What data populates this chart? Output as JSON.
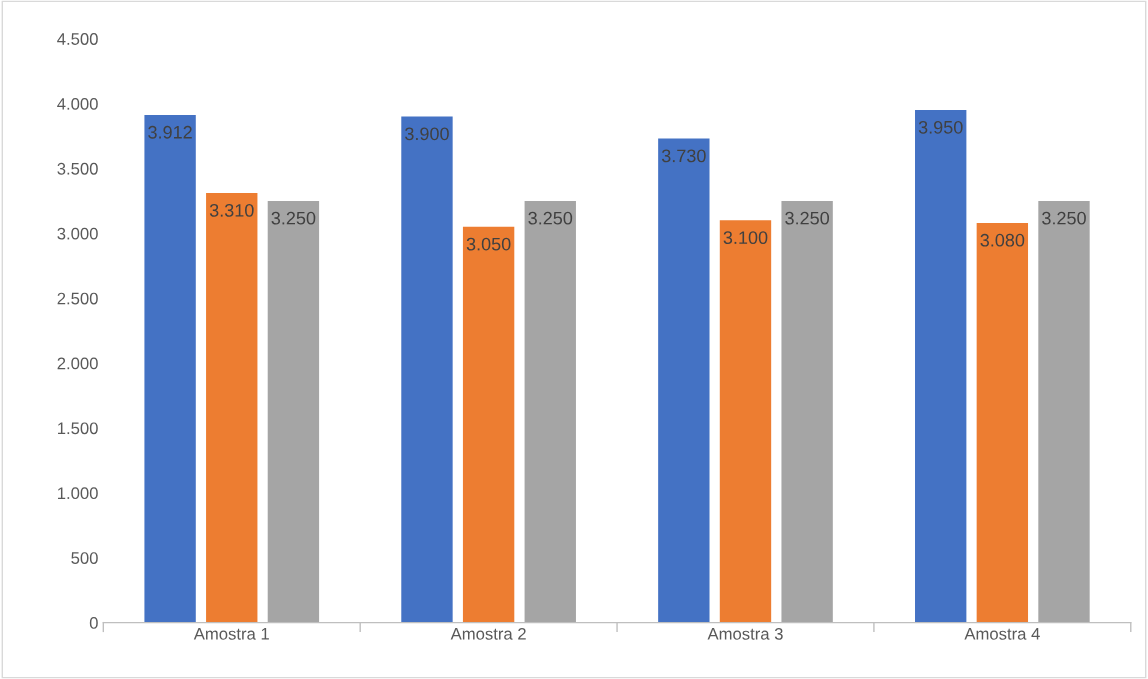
{
  "chart_data": {
    "type": "bar",
    "categories": [
      "Amostra 1",
      "Amostra 2",
      "Amostra 3",
      "Amostra 4"
    ],
    "series": [
      {
        "color": "#4472c4",
        "values": [
          3912,
          3900,
          3730,
          3950
        ],
        "value_labels": [
          "3.912",
          "3.900",
          "3.730",
          "3.950"
        ]
      },
      {
        "color": "#ed7d31",
        "values": [
          3310,
          3050,
          3100,
          3080
        ],
        "value_labels": [
          "3.310",
          "3.050",
          "3.100",
          "3.080"
        ]
      },
      {
        "color": "#a5a5a5",
        "values": [
          3250,
          3250,
          3250,
          3250
        ],
        "value_labels": [
          "3.250",
          "3.250",
          "3.250",
          "3.250"
        ]
      }
    ],
    "ylim": [
      0,
      4500
    ],
    "yticks": [
      {
        "value": 0,
        "label": "0"
      },
      {
        "value": 500,
        "label": "500"
      },
      {
        "value": 1000,
        "label": "1.000"
      },
      {
        "value": 1500,
        "label": "1.500"
      },
      {
        "value": 2000,
        "label": "2.000"
      },
      {
        "value": 2500,
        "label": "2.500"
      },
      {
        "value": 3000,
        "label": "3.000"
      },
      {
        "value": 3500,
        "label": "3.500"
      },
      {
        "value": 4000,
        "label": "4.000"
      },
      {
        "value": 4500,
        "label": "4.500"
      }
    ],
    "grid": false,
    "legend": false
  }
}
